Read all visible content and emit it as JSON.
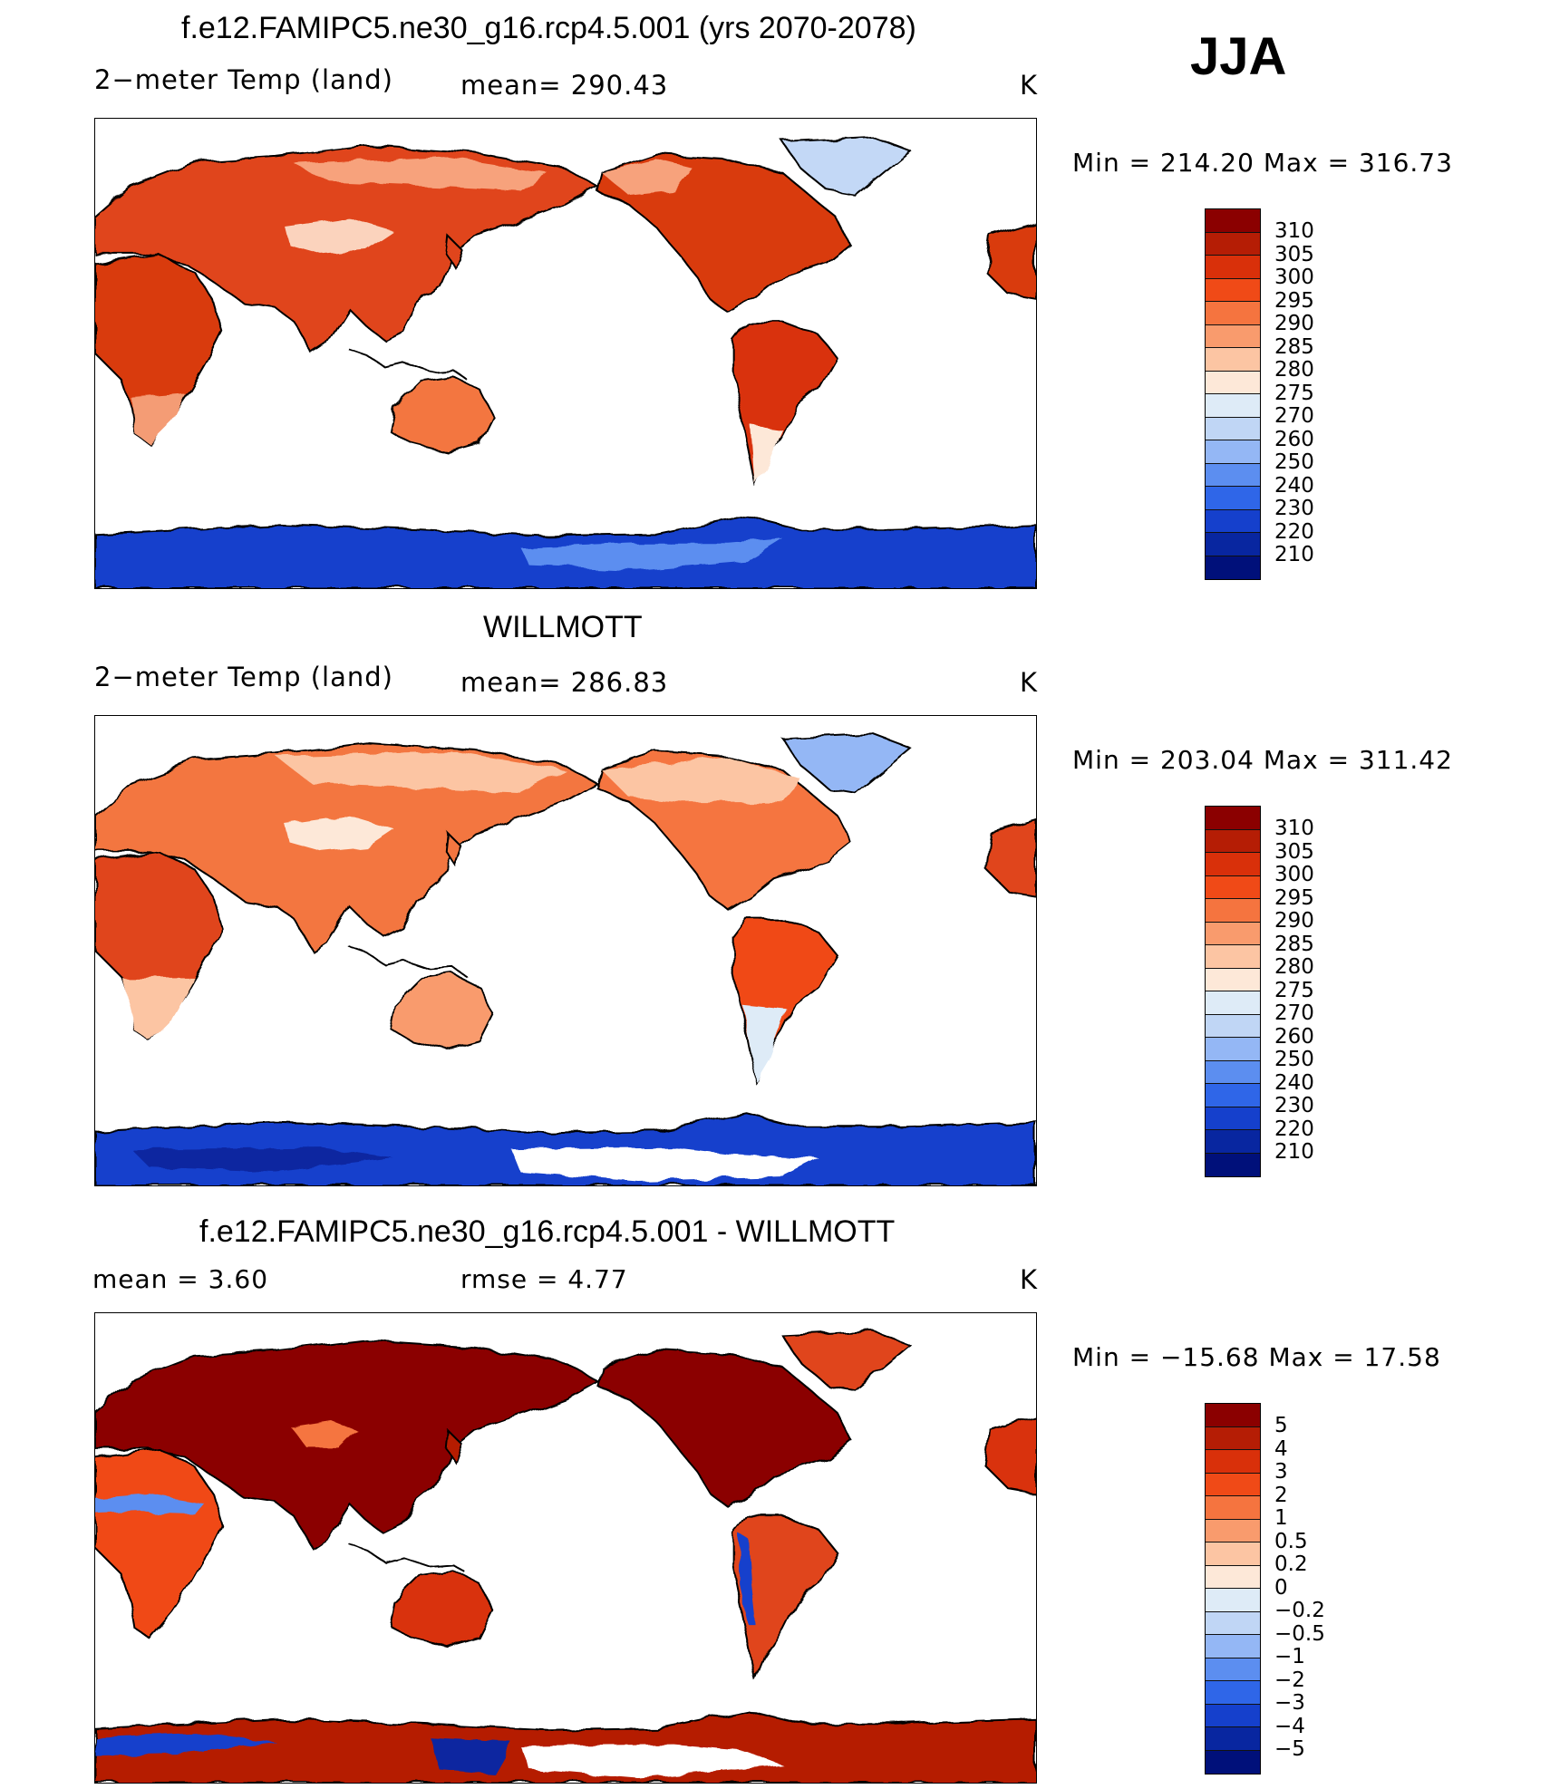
{
  "season": "JJA",
  "panels": [
    {
      "title": "f.e12.FAMIPC5.ne30_g16.rcp4.5.001 (yrs 2070-2078)",
      "variable": "2−meter Temp (land)",
      "stat": "mean=  290.43",
      "units": "K",
      "minmax": "Min  =  214.20  Max  =  316.73",
      "colorbar": {
        "labels": [
          "310",
          "305",
          "300",
          "295",
          "290",
          "285",
          "280",
          "275",
          "270",
          "260",
          "250",
          "240",
          "230",
          "220",
          "210"
        ],
        "colors": [
          "#8b0000",
          "#b51d05",
          "#d9300a",
          "#f04a17",
          "#f5743f",
          "#f99b6d",
          "#fcc5a3",
          "#fde8d8",
          "#deebf7",
          "#c0d6f5",
          "#94b7f5",
          "#5c8ef0",
          "#2f66e8",
          "#1540cc",
          "#0826a0",
          "#00107a"
        ]
      }
    },
    {
      "title": "WILLMOTT",
      "variable": "2−meter Temp (land)",
      "stat": "mean=  286.83",
      "units": "K",
      "minmax": "Min  =  203.04  Max  =  311.42",
      "colorbar": {
        "labels": [
          "310",
          "305",
          "300",
          "295",
          "290",
          "285",
          "280",
          "275",
          "270",
          "260",
          "250",
          "240",
          "230",
          "220",
          "210"
        ],
        "colors": [
          "#8b0000",
          "#b51d05",
          "#d9300a",
          "#f04a17",
          "#f5743f",
          "#f99b6d",
          "#fcc5a3",
          "#fde8d8",
          "#deebf7",
          "#c0d6f5",
          "#94b7f5",
          "#5c8ef0",
          "#2f66e8",
          "#1540cc",
          "#0826a0",
          "#00107a"
        ]
      }
    },
    {
      "title": "f.e12.FAMIPC5.ne30_g16.rcp4.5.001 - WILLMOTT",
      "variable": "mean  =      3.60",
      "stat": "rmse  =      4.77",
      "units": "K",
      "minmax": "Min  =  −15.68  Max  =     17.58",
      "colorbar": {
        "labels": [
          "5",
          "4",
          "3",
          "2",
          "1",
          "0.5",
          "0.2",
          "0",
          "−0.2",
          "−0.5",
          "−1",
          "−2",
          "−3",
          "−4",
          "−5"
        ],
        "colors": [
          "#8b0000",
          "#b51d05",
          "#d9300a",
          "#f04a17",
          "#f5743f",
          "#f99b6d",
          "#fcc5a3",
          "#fde8d8",
          "#deebf7",
          "#c0d6f5",
          "#94b7f5",
          "#5c8ef0",
          "#2f66e8",
          "#1540cc",
          "#0826a0",
          "#00107a"
        ]
      }
    }
  ]
}
